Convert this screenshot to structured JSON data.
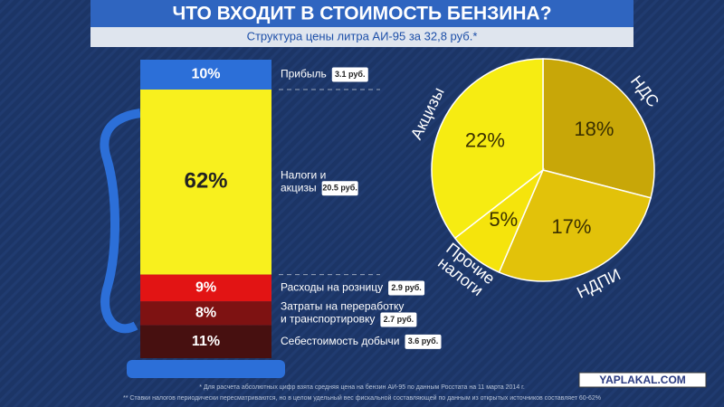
{
  "title": "ЧТО ВХОДИТ В СТОИМОСТЬ БЕНЗИНА?",
  "subtitle": "Структура цены литра АИ-95 за 32,8 руб.*",
  "chart_data": [
    {
      "type": "bar",
      "categories": [
        [
          "Прибыль"
        ],
        [
          "Налоги и",
          "акцизы"
        ],
        [
          "Расходы на розницу"
        ],
        [
          "Затраты на переработку",
          "и транспортировку"
        ],
        [
          "Себестоимость добычи"
        ]
      ],
      "values": [
        10,
        62,
        9,
        8,
        11
      ],
      "value_labels": [
        "10%",
        "62%",
        "9%",
        "8%",
        "11%"
      ],
      "colors": [
        "#2c6fd8",
        "#f8f01e",
        "#e21414",
        "#7e1212",
        "#471010"
      ],
      "amounts": [
        3.1,
        20.5,
        2.9,
        2.7,
        3.6
      ],
      "amount_labels": [
        "3.1 руб.",
        "20.5 руб.",
        "2.9 руб.",
        "2.7 руб.",
        "3.6 руб."
      ]
    },
    {
      "type": "pie",
      "categories": [
        [
          "НДС"
        ],
        [
          "НДПИ"
        ],
        [
          "Прочие",
          "налоги"
        ],
        [
          "Акцизы"
        ]
      ],
      "values": [
        18,
        17,
        5,
        22
      ],
      "value_labels": [
        "18%",
        "17%",
        "5%",
        "22%"
      ],
      "colors": [
        "#c8a708",
        "#e2c20a",
        "#f5e40c",
        "#f6ec12"
      ]
    }
  ],
  "footnotes": [
    "* Для расчета абсолютных цифр взята средняя цена на бензин АИ-95 по данным Росстата на 11 марта 2014 г.",
    "** Ставки налогов периодически пересматриваются, но в целом удельный вес фискальной составляющей по данным из открытых источников составляет 60-62%"
  ],
  "watermark": "YAPLAKAL.COM"
}
